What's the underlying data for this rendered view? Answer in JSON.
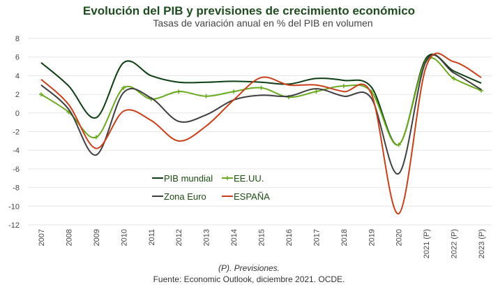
{
  "chart_data": {
    "type": "line",
    "title": "Evolución del PIB y previsiones de crecimiento económico",
    "subtitle": "Tasas de variación anual en % del PIB en volumen",
    "categories": [
      "2007",
      "2008",
      "2009",
      "2010",
      "2011",
      "2012",
      "2013",
      "2014",
      "2015",
      "2016",
      "2017",
      "2018",
      "2019",
      "2020",
      "2021 (P)",
      "2022 (P)",
      "2023 (P)"
    ],
    "ylim": [
      -12,
      8
    ],
    "yticks": [
      8,
      6,
      4,
      2,
      0,
      -2,
      -4,
      -6,
      -8,
      -10,
      -12
    ],
    "grid": true,
    "legend_position": "center-left",
    "series": [
      {
        "name": "PIB mundial",
        "color": "#0d3d12",
        "marker": false,
        "values": [
          5.4,
          2.9,
          -0.5,
          5.4,
          4.0,
          3.3,
          3.3,
          3.4,
          3.3,
          3.1,
          3.7,
          3.5,
          2.8,
          -3.4,
          5.9,
          4.5,
          3.2
        ]
      },
      {
        "name": "EE.UU.",
        "color": "#6aaa1e",
        "marker": true,
        "values": [
          2.0,
          0.1,
          -2.6,
          2.7,
          1.5,
          2.3,
          1.8,
          2.3,
          2.7,
          1.7,
          2.3,
          2.9,
          2.3,
          -3.4,
          5.6,
          3.7,
          2.4
        ]
      },
      {
        "name": "Zona Euro",
        "color": "#3f3f3f",
        "marker": false,
        "values": [
          3.0,
          0.4,
          -4.5,
          2.2,
          1.6,
          -0.9,
          -0.2,
          1.4,
          1.9,
          1.8,
          2.6,
          1.8,
          1.6,
          -6.5,
          5.6,
          4.3,
          2.5
        ]
      },
      {
        "name": "ESPAÑA",
        "color": "#c8401a",
        "marker": false,
        "values": [
          3.6,
          0.9,
          -3.8,
          0.2,
          -0.8,
          -3.0,
          -1.4,
          1.4,
          3.8,
          3.0,
          3.0,
          2.3,
          2.1,
          -10.8,
          5.0,
          5.5,
          3.8
        ]
      }
    ]
  },
  "footer": {
    "note": "(P). Previsiones.",
    "source": "Fuente: Economic Outlook, diciembre 2021. OCDE."
  }
}
